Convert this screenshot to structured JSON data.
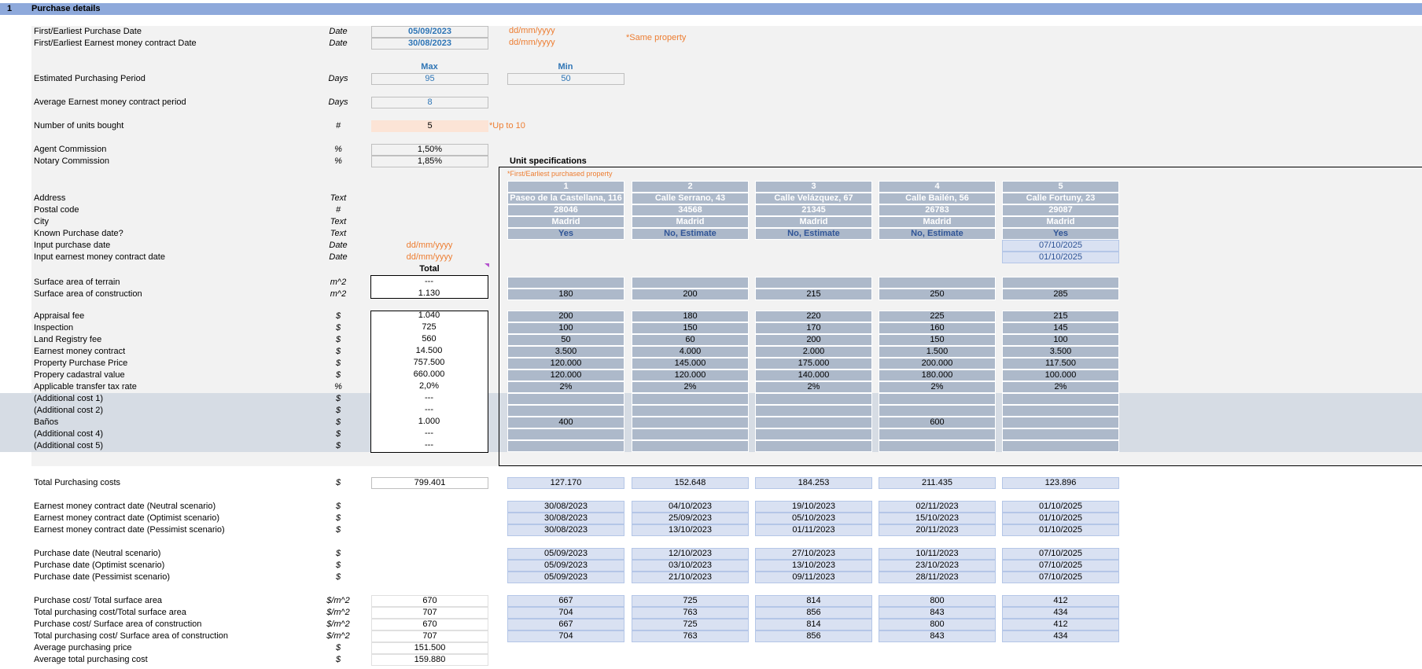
{
  "section": {
    "number": "1",
    "title": "Purchase details"
  },
  "top": {
    "purchase_date": {
      "label": "First/Earliest Purchase Date",
      "unit": "Date",
      "value": "05/09/2023",
      "hint": "dd/mm/yyyy"
    },
    "earnest_date": {
      "label": "First/Earliest Earnest money contract Date",
      "unit": "Date",
      "value": "30/08/2023",
      "hint": "dd/mm/yyyy"
    },
    "same_property_note": "*Same property",
    "max_label": "Max",
    "min_label": "Min",
    "period": {
      "label": "Estimated Purchasing Period",
      "unit": "Days",
      "max": "95",
      "min": "50"
    },
    "avg_earnest": {
      "label": "Average Earnest money contract period",
      "unit": "Days",
      "value": "8"
    },
    "units_bought": {
      "label": "Number of units bought",
      "unit": "#",
      "value": "5",
      "note": "*Up to 10"
    },
    "agent": {
      "label": "Agent Commission",
      "unit": "%",
      "value": "1,50%"
    },
    "notary": {
      "label": "Notary Commission",
      "unit": "%",
      "value": "1,85%"
    }
  },
  "spec": {
    "title": "Unit specifications",
    "note": "*First/Earliest purchased property",
    "total_label": "Total",
    "units": [
      "1",
      "2",
      "3",
      "4",
      "5"
    ],
    "address": [
      "Paseo de la Castellana, 116",
      "Calle Serrano, 43",
      "Calle Velázquez, 67",
      "Calle Bailén, 56",
      "Calle Fortuny, 23"
    ],
    "postal": [
      "28046",
      "34568",
      "21345",
      "26783",
      "29087"
    ],
    "city": [
      "Madrid",
      "Madrid",
      "Madrid",
      "Madrid",
      "Madrid"
    ],
    "known": [
      "Yes",
      "No, Estimate",
      "No, Estimate",
      "No, Estimate",
      "Yes"
    ],
    "input_purchase": "07/10/2025",
    "input_earnest": "01/10/2025"
  },
  "labels": {
    "address": {
      "label": "Address",
      "unit": "Text"
    },
    "postal": {
      "label": "Postal code",
      "unit": "#"
    },
    "city": {
      "label": "City",
      "unit": "Text"
    },
    "known": {
      "label": "Known Purchase date?",
      "unit": "Text"
    },
    "input_purchase": {
      "label": "Input purchase date",
      "unit": "Date",
      "hint": "dd/mm/yyyy"
    },
    "input_earnest": {
      "label": "Input earnest money contract date",
      "unit": "Date",
      "hint": "dd/mm/yyyy"
    }
  },
  "surface": [
    {
      "label": "Surface area of terrain",
      "unit": "m^2",
      "total": "---",
      "vals": [
        "",
        "",
        "",
        "",
        ""
      ]
    },
    {
      "label": "Surface area of construction",
      "unit": "m^2",
      "total": "1.130",
      "vals": [
        "180",
        "200",
        "215",
        "250",
        "285"
      ]
    }
  ],
  "costs": [
    {
      "label": "Appraisal fee",
      "unit": "$",
      "total": "1.040",
      "vals": [
        "200",
        "180",
        "220",
        "225",
        "215"
      ]
    },
    {
      "label": "Inspection",
      "unit": "$",
      "total": "725",
      "vals": [
        "100",
        "150",
        "170",
        "160",
        "145"
      ]
    },
    {
      "label": "Land Registry fee",
      "unit": "$",
      "total": "560",
      "vals": [
        "50",
        "60",
        "200",
        "150",
        "100"
      ]
    },
    {
      "label": "Earnest money contract",
      "unit": "$",
      "total": "14.500",
      "vals": [
        "3.500",
        "4.000",
        "2.000",
        "1.500",
        "3.500"
      ]
    },
    {
      "label": "Property Purchase Price",
      "unit": "$",
      "total": "757.500",
      "vals": [
        "120.000",
        "145.000",
        "175.000",
        "200.000",
        "117.500"
      ]
    },
    {
      "label": "Propery cadastral value",
      "unit": "$",
      "total": "660.000",
      "vals": [
        "120.000",
        "120.000",
        "140.000",
        "180.000",
        "100.000"
      ]
    },
    {
      "label": "Applicable transfer tax rate",
      "unit": "%",
      "total": "2,0%",
      "vals": [
        "2%",
        "2%",
        "2%",
        "2%",
        "2%"
      ]
    },
    {
      "label": "(Additional cost 1)",
      "unit": "$",
      "total": "---",
      "vals": [
        "",
        "",
        "",
        "",
        ""
      ]
    },
    {
      "label": "(Additional cost 2)",
      "unit": "$",
      "total": "---",
      "vals": [
        "",
        "",
        "",
        "",
        ""
      ]
    },
    {
      "label": "Baños",
      "unit": "$",
      "total": "1.000",
      "vals": [
        "400",
        "",
        "",
        "600",
        ""
      ]
    },
    {
      "label": "(Additional cost 4)",
      "unit": "$",
      "total": "---",
      "vals": [
        "",
        "",
        "",
        "",
        ""
      ]
    },
    {
      "label": "(Additional cost 5)",
      "unit": "$",
      "total": "---",
      "vals": [
        "",
        "",
        "",
        "",
        ""
      ]
    }
  ],
  "total_costs": {
    "label": "Total Purchasing costs",
    "unit": "$",
    "total": "799.401",
    "vals": [
      "127.170",
      "152.648",
      "184.253",
      "211.435",
      "123.896"
    ]
  },
  "earnest_dates": [
    {
      "label": "Earnest money contract date (Neutral scenario)",
      "unit": "$",
      "vals": [
        "30/08/2023",
        "04/10/2023",
        "19/10/2023",
        "02/11/2023",
        "01/10/2025"
      ]
    },
    {
      "label": "Earnest money contract date (Optimist scenario)",
      "unit": "$",
      "vals": [
        "30/08/2023",
        "25/09/2023",
        "05/10/2023",
        "15/10/2023",
        "01/10/2025"
      ]
    },
    {
      "label": "Earnest money contract date (Pessimist scenario)",
      "unit": "$",
      "vals": [
        "30/08/2023",
        "13/10/2023",
        "01/11/2023",
        "20/11/2023",
        "01/10/2025"
      ]
    }
  ],
  "purchase_dates": [
    {
      "label": "Purchase date (Neutral scenario)",
      "unit": "$",
      "vals": [
        "05/09/2023",
        "12/10/2023",
        "27/10/2023",
        "10/11/2023",
        "07/10/2025"
      ]
    },
    {
      "label": "Purchase date (Optimist scenario)",
      "unit": "$",
      "vals": [
        "05/09/2023",
        "03/10/2023",
        "13/10/2023",
        "23/10/2023",
        "07/10/2025"
      ]
    },
    {
      "label": "Purchase date (Pessimist scenario)",
      "unit": "$",
      "vals": [
        "05/09/2023",
        "21/10/2023",
        "09/11/2023",
        "28/11/2023",
        "07/10/2025"
      ]
    }
  ],
  "ratios": [
    {
      "label": "Purchase cost/ Total surface area",
      "unit": "$/m^2",
      "total": "670",
      "vals": [
        "667",
        "725",
        "814",
        "800",
        "412"
      ]
    },
    {
      "label": "Total purchasing cost/Total surface area",
      "unit": "$/m^2",
      "total": "707",
      "vals": [
        "704",
        "763",
        "856",
        "843",
        "434"
      ]
    },
    {
      "label": "Purchase cost/ Surface area of construction",
      "unit": "$/m^2",
      "total": "670",
      "vals": [
        "667",
        "725",
        "814",
        "800",
        "412"
      ]
    },
    {
      "label": "Total purchasing cost/ Surface area of construction",
      "unit": "$/m^2",
      "total": "707",
      "vals": [
        "704",
        "763",
        "856",
        "843",
        "434"
      ]
    },
    {
      "label": "Average purchasing price",
      "unit": "$",
      "total": "151.500",
      "vals": []
    },
    {
      "label": "Average total purchasing cost",
      "unit": "$",
      "total": "159.880",
      "vals": []
    }
  ]
}
